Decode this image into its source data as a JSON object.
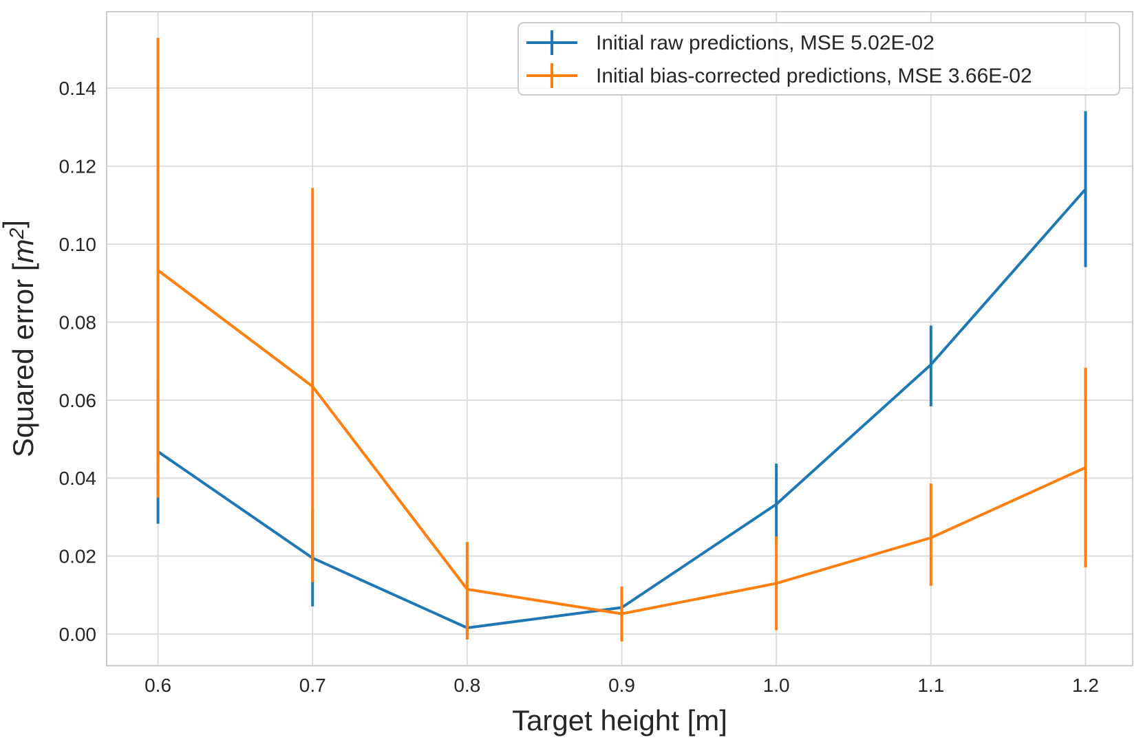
{
  "chart_data": {
    "type": "line",
    "title": "",
    "xlabel": "Target height [m]",
    "ylabel": "Squared error [m²]",
    "ylabel_parts": [
      {
        "t": "Squared error [",
        "style": "normal"
      },
      {
        "t": "m",
        "style": "italic"
      },
      {
        "t": "2",
        "style": "superscript-italic"
      },
      {
        "t": "]",
        "style": "normal"
      }
    ],
    "x": [
      0.6,
      0.7,
      0.8,
      0.9,
      1.0,
      1.1,
      1.2
    ],
    "series": [
      {
        "name": "Initial raw predictions, MSE 5.02E-02",
        "color": "#1f77b4",
        "y": [
          0.0468,
          0.0195,
          0.0016,
          0.0068,
          0.0333,
          0.0691,
          0.1141
        ],
        "y_lo": [
          0.0283,
          0.0071,
          -0.0004,
          0.003,
          0.0229,
          0.0584,
          0.0941
        ],
        "y_hi": [
          0.0653,
          0.0319,
          0.0036,
          0.0106,
          0.0437,
          0.0791,
          0.1341
        ]
      },
      {
        "name": "Initial bias-corrected predictions, MSE 3.66E-02",
        "color": "#ff7f0e",
        "y": [
          0.0933,
          0.0635,
          0.0115,
          0.0052,
          0.013,
          0.0247,
          0.0427
        ],
        "y_lo": [
          0.035,
          0.0133,
          -0.0014,
          -0.0019,
          0.001,
          0.0124,
          0.0171
        ],
        "y_hi": [
          0.1529,
          0.1144,
          0.0236,
          0.0122,
          0.025,
          0.0386,
          0.0683
        ]
      }
    ],
    "x_ticks": {
      "values": [
        0.6,
        0.7,
        0.8,
        0.9,
        1.0,
        1.1,
        1.2
      ],
      "labels": [
        "0.6",
        "0.7",
        "0.8",
        "0.9",
        "1.0",
        "1.1",
        "1.2"
      ]
    },
    "y_ticks": {
      "values": [
        0.0,
        0.02,
        0.04,
        0.06,
        0.08,
        0.1,
        0.12,
        0.14
      ],
      "labels": [
        "0.00",
        "0.02",
        "0.04",
        "0.06",
        "0.08",
        "0.10",
        "0.12",
        "0.14"
      ]
    },
    "xlim": [
      0.5668,
      1.2305
    ],
    "ylim": [
      -0.0081,
      0.1596
    ],
    "grid": true,
    "legend": {
      "position": "upper right"
    }
  },
  "styles": {
    "background": "#ffffff",
    "grid_color": "#dcdcdc",
    "spine_color": "#cccccc",
    "text_color": "#262626",
    "legend_border": "#cccccc",
    "legend_fill": "rgba(255,255,255,0.8)"
  }
}
